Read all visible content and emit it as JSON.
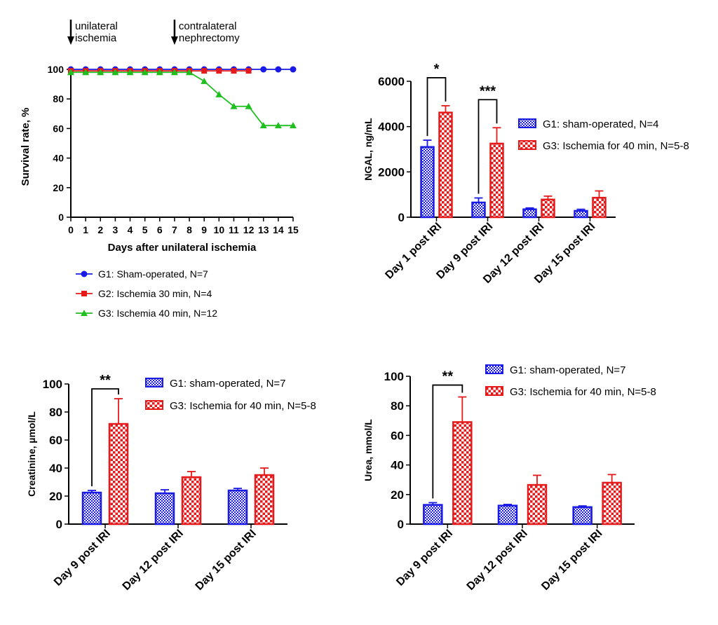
{
  "colors": {
    "blue": "#1a1ae6",
    "red": "#e61a1a",
    "green": "#1fbf1f"
  },
  "chart_data": [
    {
      "type": "line",
      "annotations": [
        "unilateral\nischemia",
        "contralateral\nnephrectomy"
      ],
      "annotation_days": [
        0,
        7
      ],
      "xlabel": "Days after unilateral ischemia",
      "ylabel": "Survival rate, %",
      "xlim": [
        0,
        15
      ],
      "ylim": [
        0,
        100
      ],
      "x_ticks": [
        "0",
        "1",
        "2",
        "3",
        "4",
        "5",
        "6",
        "7",
        "8",
        "9",
        "10",
        "11",
        "12",
        "13",
        "14",
        "15"
      ],
      "y_ticks": [
        "0",
        "20",
        "40",
        "60",
        "80",
        "100"
      ],
      "series": [
        {
          "name": "G1: Sham-operated, N=7",
          "color": "blue",
          "marker": "circle",
          "x": [
            0,
            1,
            2,
            3,
            4,
            5,
            6,
            7,
            8,
            9,
            10,
            11,
            12,
            13,
            14,
            15
          ],
          "y": [
            100,
            100,
            100,
            100,
            100,
            100,
            100,
            100,
            100,
            100,
            100,
            100,
            100,
            100,
            100,
            100
          ]
        },
        {
          "name": "G2: Ischemia 30 min, N=4",
          "color": "red",
          "marker": "square",
          "x": [
            0,
            1,
            2,
            3,
            4,
            5,
            6,
            7,
            8,
            9,
            10,
            11,
            12
          ],
          "y": [
            99,
            99,
            99,
            99,
            99,
            99,
            99,
            99,
            99,
            99,
            99,
            99,
            99
          ]
        },
        {
          "name": "G3: Ischemia 40 min, N=12",
          "color": "green",
          "marker": "triangle",
          "x": [
            0,
            1,
            2,
            3,
            4,
            5,
            6,
            7,
            8,
            9,
            10,
            11,
            12,
            13,
            14,
            15
          ],
          "y": [
            98,
            98,
            98,
            98,
            98,
            98,
            98,
            98,
            98,
            92,
            83,
            75,
            75,
            62,
            62,
            62
          ]
        }
      ]
    },
    {
      "type": "bar",
      "ylabel": "NGAL, ng/mL",
      "ylim": [
        0,
        6000
      ],
      "y_ticks": [
        "0",
        "2000",
        "4000",
        "6000"
      ],
      "categories": [
        "Day 1 post IRI",
        "Day 9 post IRI",
        "Day 12 post IRI",
        "Day 15 post IRI"
      ],
      "series": [
        {
          "name": "G1: sham-operated, N=4",
          "color": "blue",
          "values": [
            3100,
            650,
            350,
            280
          ],
          "errors": [
            300,
            200,
            60,
            70
          ]
        },
        {
          "name": "G3: Ischemia for 40 min, N=5-8",
          "color": "red",
          "values": [
            4620,
            3250,
            780,
            860
          ],
          "errors": [
            300,
            700,
            150,
            300
          ]
        }
      ],
      "significance": [
        {
          "category": 0,
          "label": "*"
        },
        {
          "category": 1,
          "label": "***"
        }
      ]
    },
    {
      "type": "bar",
      "ylabel": "Creatinine, µmol/L",
      "ylim": [
        0,
        100
      ],
      "y_ticks": [
        "0",
        "20",
        "40",
        "60",
        "80",
        "100"
      ],
      "categories": [
        "Day 9 post IRI",
        "Day 12 post IRI",
        "Day 15 post IRI"
      ],
      "series": [
        {
          "name": "G1: sham-operated, N=7",
          "color": "blue",
          "values": [
            22.5,
            22,
            24
          ],
          "errors": [
            1.5,
            2.5,
            1.5
          ]
        },
        {
          "name": "G3: Ischemia for 40 min, N=5-8",
          "color": "red",
          "values": [
            71.5,
            33.5,
            35
          ],
          "errors": [
            18,
            4,
            5
          ]
        }
      ],
      "significance": [
        {
          "category": 0,
          "label": "**"
        }
      ]
    },
    {
      "type": "bar",
      "ylabel": "Urea, mmol/L",
      "ylim": [
        0,
        100
      ],
      "y_ticks": [
        "0",
        "20",
        "40",
        "60",
        "80",
        "100"
      ],
      "categories": [
        "Day 9 post IRI",
        "Day 12 post IRI",
        "Day 15 post IRI"
      ],
      "series": [
        {
          "name": "G1: sham-operated, N=7",
          "color": "blue",
          "values": [
            13,
            12.5,
            11.5
          ],
          "errors": [
            1.5,
            0.8,
            0.8
          ]
        },
        {
          "name": "G3: Ischemia for 40 min, N=5-8",
          "color": "red",
          "values": [
            69,
            26.5,
            28
          ],
          "errors": [
            17,
            6.5,
            5.5
          ]
        }
      ],
      "significance": [
        {
          "category": 0,
          "label": "**"
        }
      ]
    }
  ]
}
